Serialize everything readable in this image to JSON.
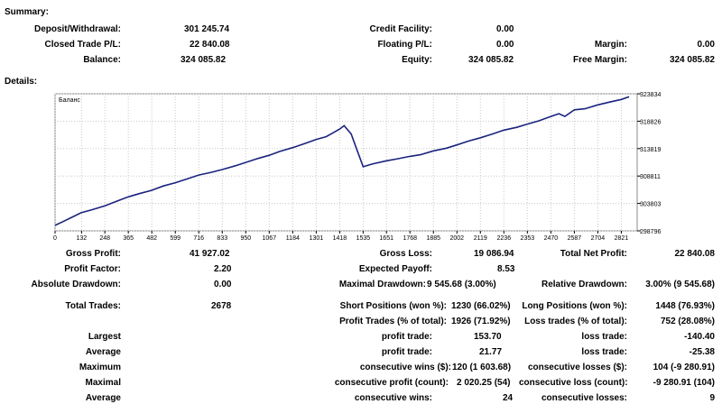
{
  "summary": {
    "heading": "Summary:",
    "deposit_label": "Deposit/Withdrawal:",
    "deposit_value": "301 245.74",
    "credit_label": "Credit Facility:",
    "credit_value": "0.00",
    "closed_label": "Closed Trade P/L:",
    "closed_value": "22 840.08",
    "floating_label": "Floating P/L:",
    "floating_value": "0.00",
    "margin_label": "Margin:",
    "margin_value": "0.00",
    "balance_label": "Balance:",
    "balance_value": "324 085.82",
    "equity_label": "Equity:",
    "equity_value": "324 085.82",
    "free_margin_label": "Free Margin:",
    "free_margin_value": "324 085.82"
  },
  "details": {
    "heading": "Details:"
  },
  "chart_data": {
    "type": "line",
    "title": "Баланс",
    "x_ticks": [
      "0",
      "132",
      "248",
      "365",
      "482",
      "599",
      "716",
      "833",
      "950",
      "1067",
      "1184",
      "1301",
      "1418",
      "1535",
      "1651",
      "1768",
      "1885",
      "2002",
      "2119",
      "2236",
      "2353",
      "2470",
      "2587",
      "2704",
      "2821"
    ],
    "y_ticks": [
      "323834",
      "318826",
      "313819",
      "308811",
      "303803",
      "298796"
    ],
    "ylim": [
      298796,
      323834
    ],
    "xlim": [
      0,
      2900
    ],
    "grid": true,
    "series": [
      {
        "color": "#1a237e",
        "x": [
          0,
          40,
          80,
          130,
          180,
          250,
          300,
          365,
          420,
          480,
          540,
          600,
          660,
          716,
          780,
          833,
          900,
          950,
          1010,
          1067,
          1120,
          1184,
          1240,
          1301,
          1350,
          1380,
          1418,
          1440,
          1475,
          1500,
          1535,
          1580,
          1651,
          1700,
          1768,
          1820,
          1885,
          1950,
          2002,
          2060,
          2119,
          2180,
          2236,
          2300,
          2353,
          2410,
          2470,
          2510,
          2540,
          2587,
          2640,
          2704,
          2760,
          2821,
          2860
        ],
        "y": [
          299800,
          300500,
          301200,
          302100,
          302600,
          303400,
          304100,
          305000,
          305600,
          306200,
          307000,
          307600,
          308300,
          309000,
          309500,
          310000,
          310700,
          311300,
          312000,
          312600,
          313300,
          314000,
          314700,
          315500,
          316000,
          316600,
          317400,
          318000,
          316500,
          314000,
          310500,
          311000,
          311600,
          311900,
          312400,
          312700,
          313400,
          313900,
          314500,
          315200,
          315800,
          316500,
          317200,
          317700,
          318300,
          318900,
          319700,
          320200,
          319700,
          320900,
          321100,
          321800,
          322300,
          322800,
          323300
        ]
      }
    ]
  },
  "stats": {
    "gross_profit_label": "Gross Profit:",
    "gross_profit_value": "41 927.02",
    "gross_loss_label": "Gross Loss:",
    "gross_loss_value": "19 086.94",
    "total_net_label": "Total Net Profit:",
    "total_net_value": "22 840.08",
    "profit_factor_label": "Profit Factor:",
    "profit_factor_value": "2.20",
    "expected_payoff_label": "Expected Payoff:",
    "expected_payoff_value": "8.53",
    "abs_drawdown_label": "Absolute Drawdown:",
    "abs_drawdown_value": "0.00",
    "max_drawdown_label": "Maximal Drawdown:",
    "max_drawdown_value": "9 545.68 (3.00%)",
    "rel_drawdown_label": "Relative Drawdown:",
    "rel_drawdown_value": "3.00% (9 545.68)",
    "total_trades_label": "Total Trades:",
    "total_trades_value": "2678",
    "short_pos_label": "Short Positions (won %):",
    "short_pos_value": "1230 (66.02%)",
    "long_pos_label": "Long Positions (won %):",
    "long_pos_value": "1448 (76.93%)",
    "profit_trades_label": "Profit Trades (% of total):",
    "profit_trades_value": "1926 (71.92%)",
    "loss_trades_label": "Loss trades (% of total):",
    "loss_trades_value": "752 (28.08%)",
    "largest_label": "Largest",
    "largest_profit_label": "profit trade:",
    "largest_profit_value": "153.70",
    "largest_loss_label": "loss trade:",
    "largest_loss_value": "-140.40",
    "average_label": "Average",
    "average_profit_label": "profit trade:",
    "average_profit_value": "21.77",
    "average_loss_label": "loss trade:",
    "average_loss_value": "-25.38",
    "maximum_label": "Maximum",
    "max_cons_wins_label": "consecutive wins ($):",
    "max_cons_wins_value": "120 (1 603.68)",
    "max_cons_losses_label": "consecutive losses ($):",
    "max_cons_losses_value": "104 (-9 280.91)",
    "maximal_label": "Maximal",
    "maximal_profit_label": "consecutive profit (count):",
    "maximal_profit_value": "2 020.25 (54)",
    "maximal_loss_label": "consecutive loss (count):",
    "maximal_loss_value": "-9 280.91 (104)",
    "average2_label": "Average",
    "avg_cons_wins_label": "consecutive wins:",
    "avg_cons_wins_value": "24",
    "avg_cons_losses_label": "consecutive losses:",
    "avg_cons_losses_value": "9"
  }
}
